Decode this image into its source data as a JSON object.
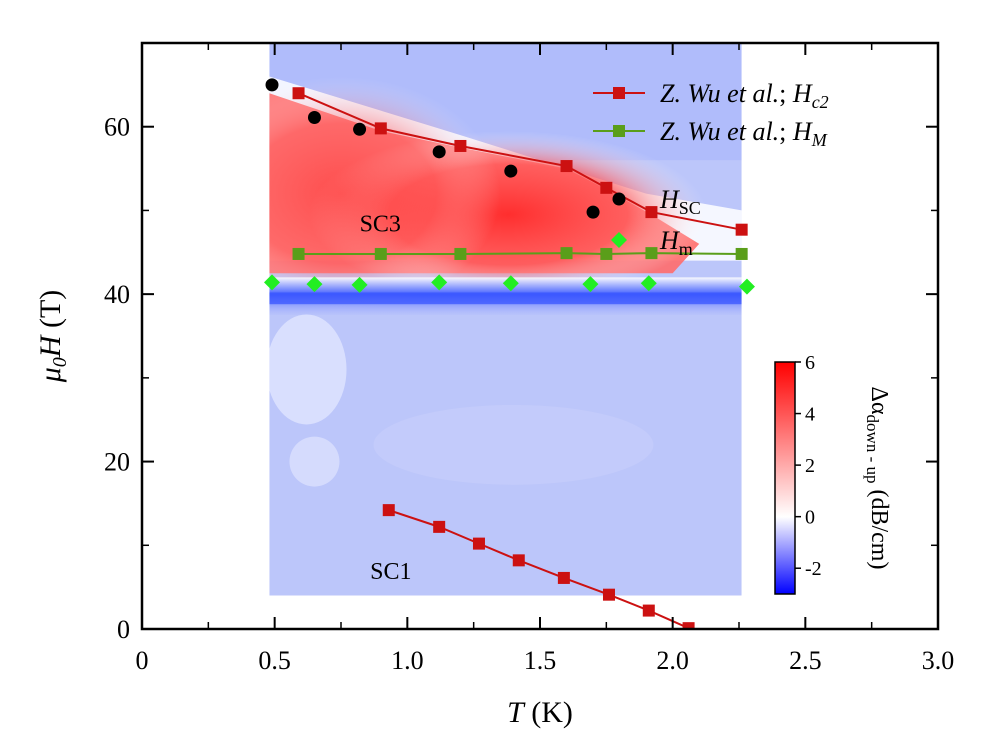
{
  "chart_data": {
    "type": "scatter",
    "title": "",
    "xlabel": {
      "var": "T",
      "unit": " (K)"
    },
    "ylabel": {
      "var": "μ",
      "sub": "0",
      "var2": "H",
      "unit": " (T)"
    },
    "xlim": [
      0,
      3.0
    ],
    "ylim": [
      0,
      70
    ],
    "x_ticks": [
      {
        "value": 0,
        "label": "0"
      },
      {
        "value": 0.5,
        "label": "0.5"
      },
      {
        "value": 1.0,
        "label": "1.0"
      },
      {
        "value": 1.5,
        "label": "1.5"
      },
      {
        "value": 2.0,
        "label": "2.0"
      },
      {
        "value": 2.5,
        "label": "2.5"
      },
      {
        "value": 3.0,
        "label": "3.0"
      }
    ],
    "y_ticks": [
      {
        "value": 0,
        "label": "0"
      },
      {
        "value": 20,
        "label": "20"
      },
      {
        "value": 40,
        "label": "40"
      },
      {
        "value": 60,
        "label": "60"
      }
    ],
    "heatmap": {
      "x_range": [
        0.48,
        2.26
      ],
      "y_range": [
        4,
        70
      ],
      "colormap": [
        "#0000ff",
        "#ffffff",
        "#ff0000"
      ],
      "zlim": [
        -3,
        6
      ]
    },
    "colorbar": {
      "ticks": [
        {
          "value": 6,
          "label": "6"
        },
        {
          "value": 4,
          "label": "4"
        },
        {
          "value": 2,
          "label": "2"
        },
        {
          "value": 0,
          "label": "0"
        },
        {
          "value": -2,
          "label": "-2"
        }
      ],
      "label_prefix": "Δα",
      "label_sub": "down - up",
      "label_unit": " (dB/cm)"
    },
    "regions": [
      {
        "label": "SC3",
        "x": 0.82,
        "y": 47.5
      },
      {
        "label": "SC1",
        "x": 0.86,
        "y": 6
      }
    ],
    "series": [
      {
        "name_parts": [
          "Z. Wu et al.",
          "; ",
          "H",
          "c2"
        ],
        "color": "#cc1111",
        "marker": "square",
        "line": true,
        "segments": [
          [
            [
              0.59,
              64.0
            ],
            [
              0.9,
              59.8
            ],
            [
              1.2,
              57.7
            ],
            [
              1.6,
              55.3
            ],
            [
              1.75,
              52.7
            ],
            [
              1.92,
              49.8
            ],
            [
              2.26,
              47.7
            ]
          ],
          [
            [
              0.93,
              14.2
            ],
            [
              1.12,
              12.2
            ],
            [
              1.27,
              10.2
            ],
            [
              1.42,
              8.2
            ],
            [
              1.59,
              6.1
            ],
            [
              1.76,
              4.1
            ],
            [
              1.91,
              2.2
            ],
            [
              2.06,
              0.1
            ]
          ]
        ]
      },
      {
        "name_parts": [
          "Z. Wu et al.",
          "; ",
          "H",
          "M"
        ],
        "color": "#5a9e1a",
        "marker": "square",
        "line": true,
        "segments": [
          [
            [
              0.59,
              44.8
            ],
            [
              0.9,
              44.8
            ],
            [
              1.2,
              44.8
            ],
            [
              1.6,
              44.9
            ],
            [
              1.75,
              44.8
            ],
            [
              1.92,
              44.9
            ],
            [
              2.26,
              44.8
            ]
          ]
        ]
      },
      {
        "name_parts": [
          "H",
          "SC"
        ],
        "color": "#000000",
        "marker": "circle",
        "line": false,
        "segments": [
          [
            [
              0.49,
              65.0
            ],
            [
              0.65,
              61.1
            ],
            [
              0.82,
              59.7
            ],
            [
              1.12,
              57.0
            ],
            [
              1.39,
              54.7
            ],
            [
              1.7,
              49.8
            ]
          ]
        ]
      },
      {
        "name_parts": [
          "H",
          "m"
        ],
        "color": "#22ee22",
        "marker": "diamond",
        "line": false,
        "segments": [
          [
            [
              0.49,
              41.4
            ],
            [
              0.65,
              41.2
            ],
            [
              0.82,
              41.1
            ],
            [
              1.12,
              41.4
            ],
            [
              1.39,
              41.3
            ],
            [
              1.69,
              41.2
            ],
            [
              1.91,
              41.3
            ],
            [
              2.28,
              40.9
            ]
          ]
        ]
      }
    ],
    "legend_position": "top-right"
  }
}
